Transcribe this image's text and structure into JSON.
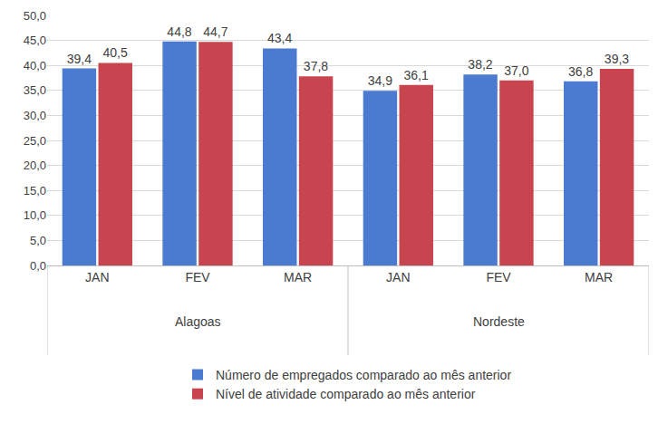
{
  "chart_data": {
    "type": "bar",
    "categories": [
      "JAN",
      "FEV",
      "MAR",
      "JAN",
      "FEV",
      "MAR"
    ],
    "groups": [
      "Alagoas",
      "Alagoas",
      "Alagoas",
      "Nordeste",
      "Nordeste",
      "Nordeste"
    ],
    "series": [
      {
        "name": "Número de empregados comparado ao mês anterior",
        "color": "#4a7bd0",
        "values": [
          39.4,
          44.8,
          43.4,
          34.9,
          38.2,
          36.8
        ],
        "value_labels": [
          "39,4",
          "44,8",
          "43,4",
          "34,9",
          "38,2",
          "36,8"
        ]
      },
      {
        "name": "Nível de atividade comparado ao mês anterior",
        "color": "#c8444f",
        "values": [
          40.5,
          44.7,
          37.8,
          36.1,
          37.0,
          39.3
        ],
        "value_labels": [
          "40,5",
          "44,7",
          "37,8",
          "36,1",
          "37,0",
          "39,3"
        ]
      }
    ],
    "ylim": [
      0,
      50
    ],
    "yticks": [
      {
        "value": 0,
        "label": "0,0"
      },
      {
        "value": 5,
        "label": "5,0"
      },
      {
        "value": 10,
        "label": "10,0"
      },
      {
        "value": 15,
        "label": "15,0"
      },
      {
        "value": 20,
        "label": "20,0"
      },
      {
        "value": 25,
        "label": "25,0"
      },
      {
        "value": 30,
        "label": "30,0"
      },
      {
        "value": 35,
        "label": "35,0"
      },
      {
        "value": 40,
        "label": "40,0"
      },
      {
        "value": 45,
        "label": "45,0"
      },
      {
        "value": 50,
        "label": "50,0"
      }
    ],
    "grid": true,
    "legend": "bottom",
    "data_labels": true
  }
}
